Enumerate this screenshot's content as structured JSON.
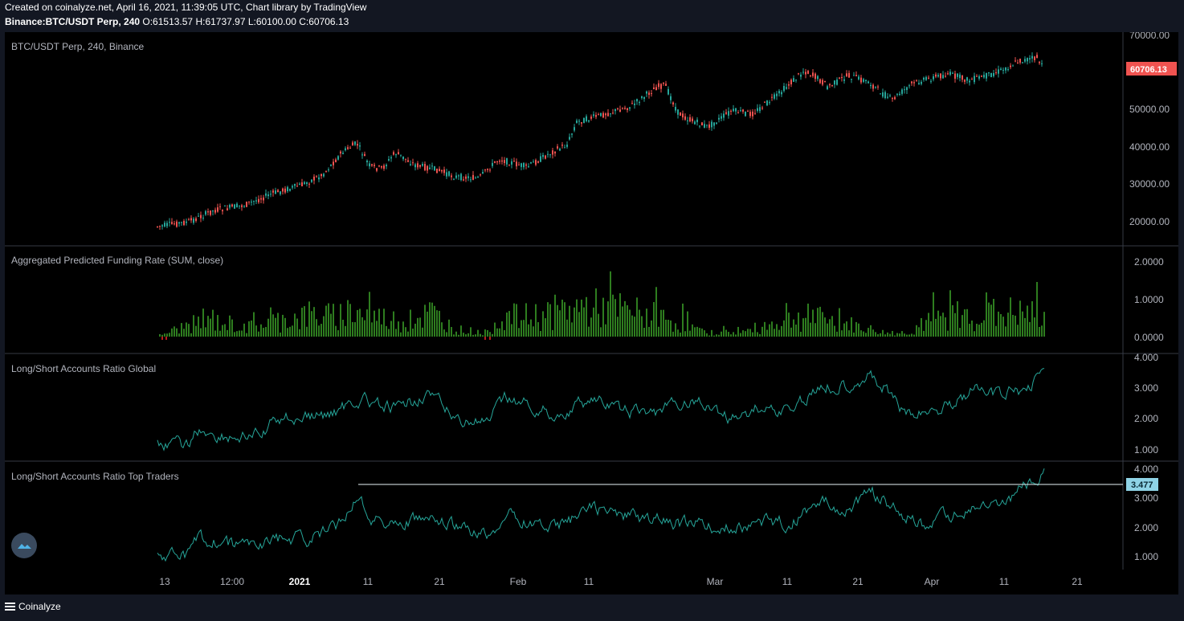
{
  "header": {
    "line1": "Created on coinalyze.net, April 16, 2021, 11:39:05 UTC, Chart library by TradingView",
    "symbol": "Binance:BTC/USDT Perp, 240",
    "ohlc": "O:61513.57 H:61737.97 L:60100.00 C:60706.13"
  },
  "panes": [
    {
      "id": "price",
      "title": "BTC/USDT Perp, 240, Binance",
      "axis_labels": [
        "70000.00",
        "50000.00",
        "40000.00",
        "30000.00",
        "20000.00"
      ],
      "last_value": "60706.13",
      "last_color": "#f05350"
    },
    {
      "id": "funding",
      "title": "Aggregated Predicted Funding Rate (SUM, close)",
      "axis_labels": [
        "2.0000",
        "1.0000",
        "0.0000"
      ]
    },
    {
      "id": "ls_global",
      "title": "Long/Short Accounts Ratio Global",
      "axis_labels": [
        "4.000",
        "3.000",
        "2.000",
        "1.000"
      ]
    },
    {
      "id": "ls_top",
      "title": "Long/Short Accounts Ratio Top Traders",
      "axis_labels": [
        "4.000",
        "3.000",
        "2.000",
        "1.000"
      ],
      "marker_value": "3.477",
      "marker_color": "#8fd3e6"
    }
  ],
  "time_axis": [
    "13",
    "12:00",
    "2021",
    "11",
    "21",
    "Feb",
    "11",
    "Mar",
    "11",
    "21",
    "Apr",
    "11",
    "21"
  ],
  "footer": {
    "brand": "Coinalyze"
  },
  "colors": {
    "up": "#26a69a",
    "down": "#ef5350",
    "funding_pos": "#2e7d1f",
    "funding_neg": "#b71c1c",
    "ratio_line": "#26a69a"
  },
  "icons": {
    "logo": "coinalyze-cloud-icon",
    "menu": "hamburger-menu-icon"
  }
}
